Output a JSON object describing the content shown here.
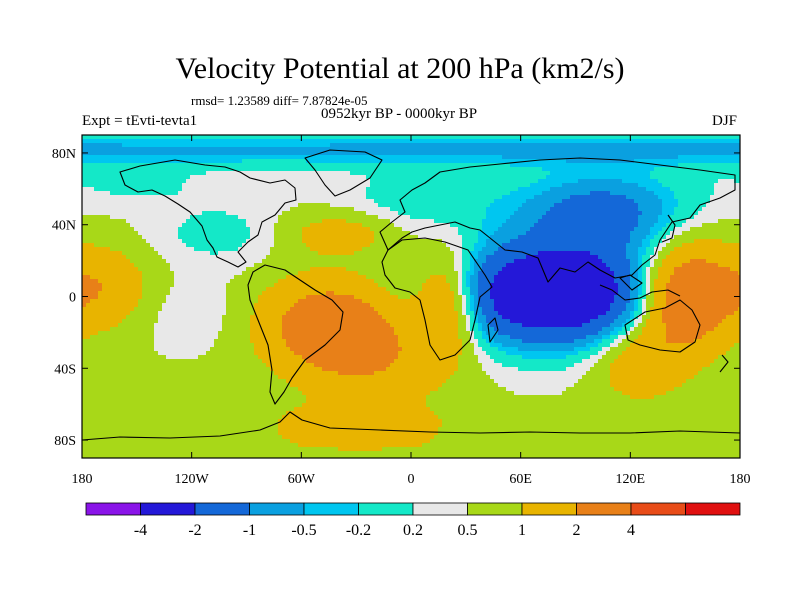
{
  "chart_data": {
    "type": "heatmap",
    "title": "Velocity Potential at 200 hPa (km2/s)",
    "stats": "rmsd= 1.23589 diff= 7.87824e-05",
    "experiment": "Expt = tEvti-tevta1",
    "period": "0952kyr BP - 0000kyr BP",
    "season": "DJF",
    "x_ticks": [
      {
        "lon": -180,
        "label": "180"
      },
      {
        "lon": -120,
        "label": "120W"
      },
      {
        "lon": -60,
        "label": "60W"
      },
      {
        "lon": 0,
        "label": "0"
      },
      {
        "lon": 60,
        "label": "60E"
      },
      {
        "lon": 120,
        "label": "120E"
      },
      {
        "lon": 180,
        "label": "180"
      }
    ],
    "y_ticks": [
      {
        "lat": 80,
        "label": "80N"
      },
      {
        "lat": 40,
        "label": "40N"
      },
      {
        "lat": 0,
        "label": "0"
      },
      {
        "lat": -40,
        "label": "40S"
      },
      {
        "lat": -80,
        "label": "80S"
      }
    ],
    "xlim": [
      -180,
      180
    ],
    "ylim": [
      -90,
      90
    ],
    "colorbar": {
      "colors": [
        "#8a14e8",
        "#2418d8",
        "#1468d8",
        "#0aa0e0",
        "#00c6f0",
        "#14e8c8",
        "#e8e8e8",
        "#a8d818",
        "#e8b400",
        "#e88018",
        "#e84c18",
        "#e01010"
      ],
      "labels": [
        "-4",
        "-2",
        "-1",
        "-0.5",
        "-0.2",
        "0.2",
        "0.5",
        "1",
        "2",
        "4"
      ]
    },
    "anomaly_centers": [
      {
        "lon": 78,
        "lat": 2,
        "value": -4.3,
        "sx": 55,
        "sy": 28
      },
      {
        "lon": 105,
        "lat": 48,
        "value": -1.8,
        "sx": 45,
        "sy": 22
      },
      {
        "lon": 10,
        "lat": 55,
        "value": -0.6,
        "sx": 50,
        "sy": 18
      },
      {
        "lon": -105,
        "lat": 35,
        "value": -0.5,
        "sx": 38,
        "sy": 18
      },
      {
        "lon": -150,
        "lat": 62,
        "value": -0.4,
        "sx": 45,
        "sy": 12
      },
      {
        "lon": -120,
        "lat": -10,
        "value": -0.3,
        "sx": 30,
        "sy": 20
      },
      {
        "lon": 150,
        "lat": 0,
        "value": 3.2,
        "sx": 25,
        "sy": 28
      },
      {
        "lon": 125,
        "lat": -35,
        "value": 1.2,
        "sx": 25,
        "sy": 22
      },
      {
        "lon": -45,
        "lat": -15,
        "value": 2.3,
        "sx": 35,
        "sy": 24
      },
      {
        "lon": 20,
        "lat": -2,
        "value": 2.0,
        "sx": 18,
        "sy": 28
      },
      {
        "lon": -20,
        "lat": -35,
        "value": 1.2,
        "sx": 40,
        "sy": 25
      },
      {
        "lon": -40,
        "lat": 35,
        "value": 0.9,
        "sx": 30,
        "sy": 12
      },
      {
        "lon": -170,
        "lat": 5,
        "value": 1.3,
        "sx": 25,
        "sy": 22
      },
      {
        "lon": -30,
        "lat": -70,
        "value": 0.8,
        "sx": 50,
        "sy": 10
      }
    ]
  }
}
